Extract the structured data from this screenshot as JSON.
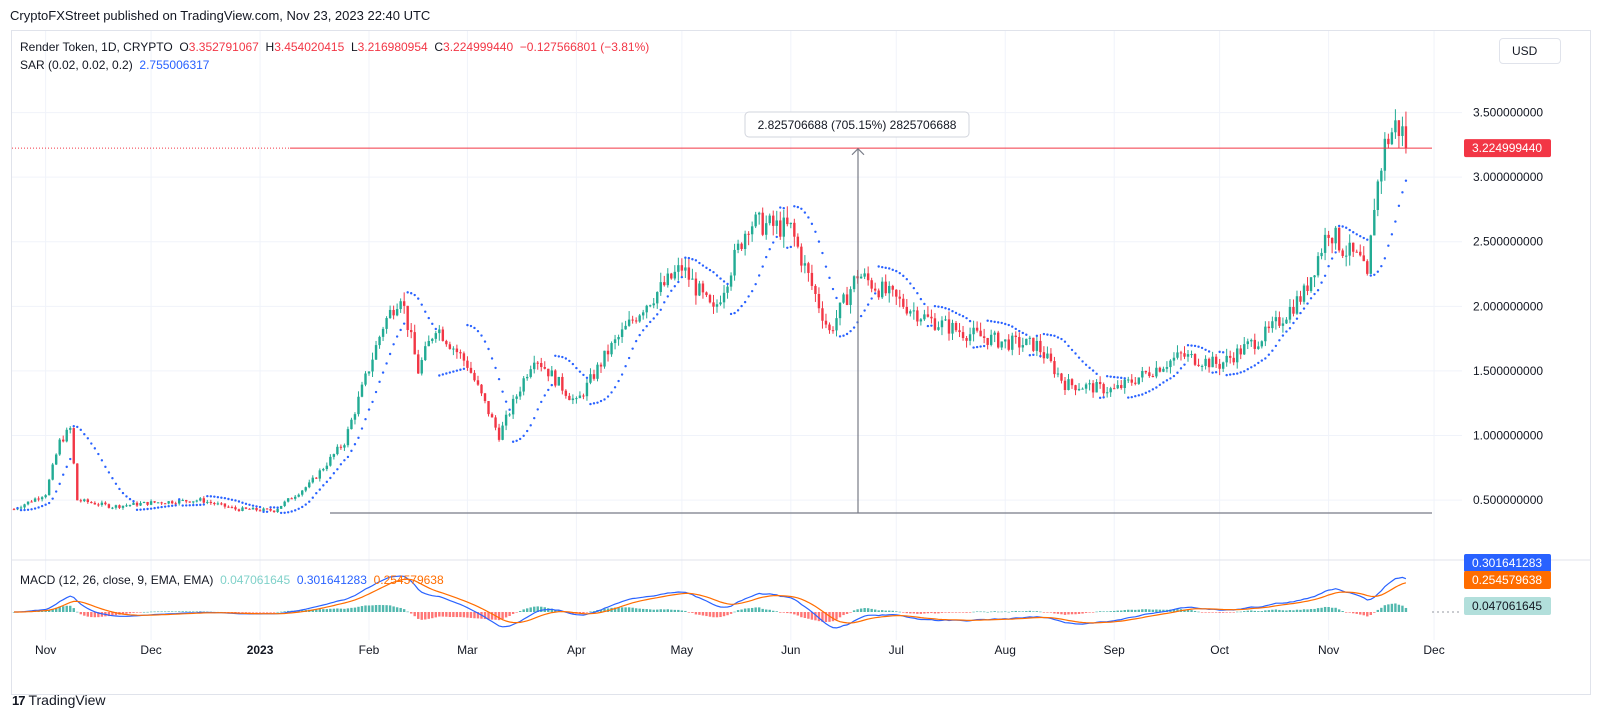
{
  "header": {
    "published_by": "CryptoFXStreet published on TradingView.com, Nov 23, 2023 22:40 UTC"
  },
  "currency_button": "USD",
  "legend": {
    "symbol": "Render Token, 1D, CRYPTO",
    "o_label": "O",
    "o_value": "3.352791067",
    "h_label": "H",
    "h_value": "3.454020415",
    "l_label": "L",
    "l_value": "3.216980954",
    "c_label": "C",
    "c_value": "3.224999440",
    "change": "−0.127566801 (−3.81%)",
    "sar_label": "SAR (0.02, 0.02, 0.2)",
    "sar_value": "2.755006317",
    "macd_label": "MACD (12, 26, close, 9, EMA, EMA)",
    "macd_hist": "0.047061645",
    "macd_line": "0.301641283",
    "macd_signal": "0.254579638"
  },
  "measure_label": "2.825706688 (705.15%) 2825706688",
  "price_tag": "3.224999440",
  "macd_tags": [
    "0.301641283",
    "0.254579638",
    "0.047061645"
  ],
  "footer_logo": "TradingView",
  "colors": {
    "up": "#22ab94",
    "down": "#f23645",
    "sar": "#2962ff",
    "macd_line": "#2962ff",
    "signal_line": "#ff6d00",
    "hist_up": "#26a69a",
    "hist_down": "#ff5252"
  },
  "chart_data": {
    "type": "candlestick",
    "title": "Render Token, 1D, CRYPTO",
    "y_axis": {
      "ticks": [
        "3.500000000",
        "3.000000000",
        "2.500000000",
        "2.000000000",
        "1.500000000",
        "1.000000000",
        "0.500000000"
      ],
      "tick_values": [
        3.5,
        3.0,
        2.5,
        2.0,
        1.5,
        1.0,
        0.5
      ]
    },
    "x_axis": {
      "ticks": [
        "Nov",
        "Dec",
        "2023",
        "Feb",
        "Mar",
        "Apr",
        "May",
        "Jun",
        "Jul",
        "Aug",
        "Sep",
        "Oct",
        "Nov",
        "Dec"
      ]
    },
    "price_path": [
      [
        "2022-10-23",
        0.43
      ],
      [
        "2022-11-01",
        0.55
      ],
      [
        "2022-11-05",
        0.95
      ],
      [
        "2022-11-08",
        1.05
      ],
      [
        "2022-11-10",
        0.5
      ],
      [
        "2022-11-20",
        0.45
      ],
      [
        "2022-12-01",
        0.48
      ],
      [
        "2022-12-15",
        0.5
      ],
      [
        "2022-12-25",
        0.43
      ],
      [
        "2023-01-05",
        0.42
      ],
      [
        "2023-01-15",
        0.62
      ],
      [
        "2023-01-25",
        0.95
      ],
      [
        "2023-02-05",
        1.85
      ],
      [
        "2023-02-10",
        2.1
      ],
      [
        "2023-02-15",
        1.5
      ],
      [
        "2023-02-20",
        1.85
      ],
      [
        "2023-03-01",
        1.55
      ],
      [
        "2023-03-10",
        1.0
      ],
      [
        "2023-03-20",
        1.62
      ],
      [
        "2023-04-01",
        1.25
      ],
      [
        "2023-04-10",
        1.65
      ],
      [
        "2023-04-20",
        2.0
      ],
      [
        "2023-05-01",
        2.3
      ],
      [
        "2023-05-10",
        1.95
      ],
      [
        "2023-05-20",
        2.65
      ],
      [
        "2023-06-01",
        2.6
      ],
      [
        "2023-06-05",
        2.3
      ],
      [
        "2023-06-12",
        1.8
      ],
      [
        "2023-06-20",
        2.25
      ],
      [
        "2023-07-01",
        2.05
      ],
      [
        "2023-07-10",
        1.9
      ],
      [
        "2023-07-20",
        1.8
      ],
      [
        "2023-08-01",
        1.72
      ],
      [
        "2023-08-10",
        1.7
      ],
      [
        "2023-08-18",
        1.4
      ],
      [
        "2023-09-01",
        1.35
      ],
      [
        "2023-09-10",
        1.48
      ],
      [
        "2023-09-20",
        1.62
      ],
      [
        "2023-10-01",
        1.55
      ],
      [
        "2023-10-15",
        1.8
      ],
      [
        "2023-10-25",
        2.1
      ],
      [
        "2023-11-01",
        2.6
      ],
      [
        "2023-11-05",
        2.45
      ],
      [
        "2023-11-10",
        2.35
      ],
      [
        "2023-11-12",
        2.2
      ],
      [
        "2023-11-14",
        2.8
      ],
      [
        "2023-11-17",
        3.25
      ],
      [
        "2023-11-20",
        3.4
      ],
      [
        "2023-11-22",
        3.35
      ],
      [
        "2023-11-23",
        3.22
      ]
    ],
    "last_close": 3.22499944,
    "measurement": {
      "from": 0.4,
      "to": 3.22,
      "change": 2.825706688,
      "percent": 705.15
    },
    "macd": {
      "macd": 0.301641283,
      "signal": 0.254579638,
      "histogram": 0.047061645
    }
  }
}
